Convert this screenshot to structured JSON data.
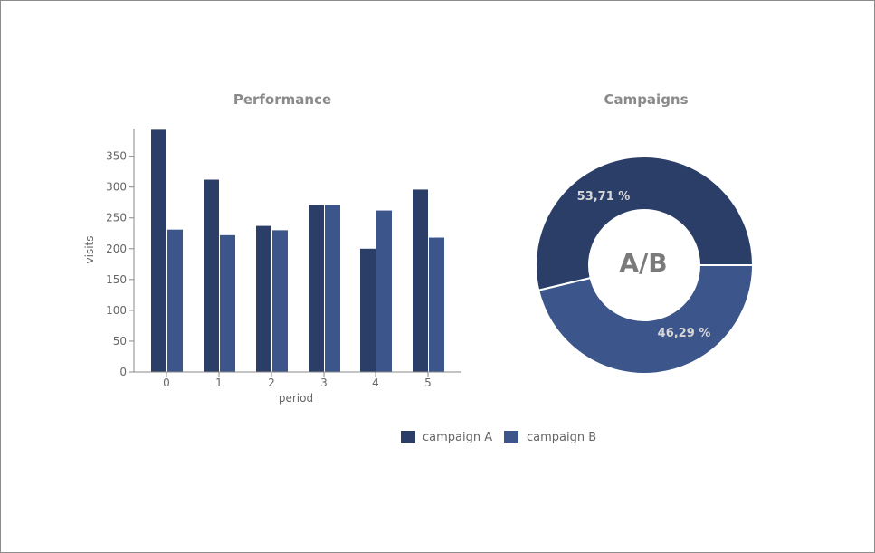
{
  "colors": {
    "campaign_a": "#2b3e68",
    "campaign_b": "#3c568c",
    "axis": "#888888"
  },
  "chart_data": [
    {
      "type": "bar",
      "title": "Performance",
      "xlabel": "period",
      "ylabel": "visits",
      "categories": [
        "0",
        "1",
        "2",
        "3",
        "4",
        "5"
      ],
      "series": [
        {
          "name": "campaign A",
          "values": [
            393,
            312,
            237,
            271,
            200,
            296
          ]
        },
        {
          "name": "campaign B",
          "values": [
            231,
            222,
            230,
            271,
            262,
            218
          ]
        }
      ],
      "ylim": [
        0,
        395
      ],
      "yticks": [
        "0",
        "50",
        "100",
        "150",
        "200",
        "250",
        "300",
        "350"
      ],
      "grid": false,
      "legend": "bottom"
    },
    {
      "type": "pie",
      "title": "Campaigns",
      "center_label": "A/B",
      "slices": [
        {
          "name": "campaign A",
          "value": 53.71,
          "label": "53,71 %"
        },
        {
          "name": "campaign B",
          "value": 46.29,
          "label": "46,29 %"
        }
      ],
      "donut": true,
      "legend": "bottom"
    }
  ],
  "legend": {
    "items": [
      {
        "label": "campaign A",
        "color_key": "campaign_a"
      },
      {
        "label": "campaign B",
        "color_key": "campaign_b"
      }
    ]
  }
}
